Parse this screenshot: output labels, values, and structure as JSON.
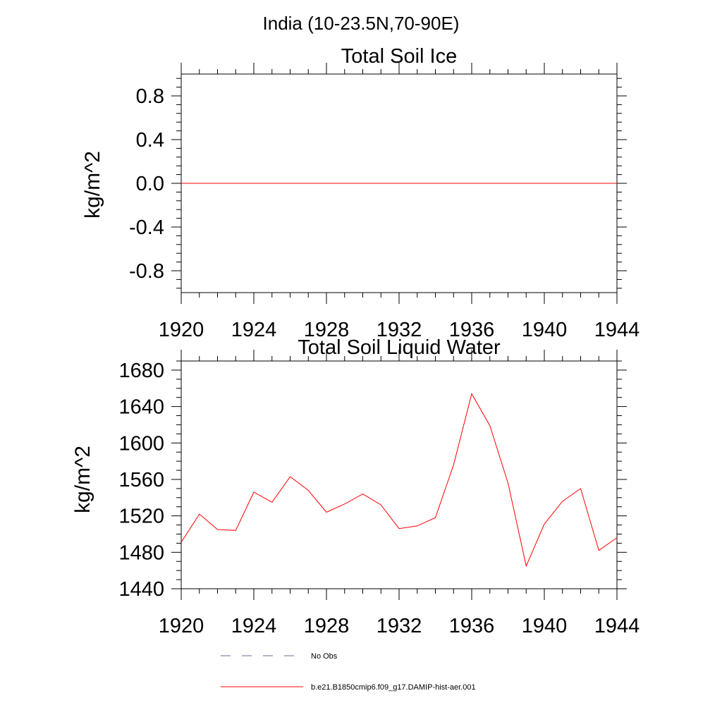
{
  "page_title": "India (10-23.5N,70-90E)",
  "legend": [
    {
      "label": "No Obs",
      "color": "#6a6a9a",
      "style": "dashed"
    },
    {
      "label": "b.e21.B1850cmip6.f09_g17.DAMIP-hist-aer.001",
      "color": "#ff0000",
      "style": "solid"
    }
  ],
  "chart_data": [
    {
      "type": "line",
      "title": "Total Soil Ice",
      "xlabel": "",
      "ylabel": "kg/m^2",
      "xlim": [
        1920,
        1944
      ],
      "ylim": [
        -1.0,
        1.0
      ],
      "x_ticks": [
        "1920",
        "1924",
        "1928",
        "1932",
        "1936",
        "1940",
        "1944"
      ],
      "y_ticks": [
        "0.8",
        "0.4",
        "0.0",
        "-0.4",
        "-0.8"
      ],
      "x_tick_values": [
        1920,
        1924,
        1928,
        1932,
        1936,
        1940,
        1944
      ],
      "y_tick_values": [
        0.8,
        0.4,
        0.0,
        -0.4,
        -0.8
      ],
      "grid": false,
      "series": [
        {
          "color": "#ff0000",
          "x": [
            1920,
            1921,
            1922,
            1923,
            1924,
            1925,
            1926,
            1927,
            1928,
            1929,
            1930,
            1931,
            1932,
            1933,
            1934,
            1935,
            1936,
            1937,
            1938,
            1939,
            1940,
            1941,
            1942,
            1943,
            1944
          ],
          "values": [
            0,
            0,
            0,
            0,
            0,
            0,
            0,
            0,
            0,
            0,
            0,
            0,
            0,
            0,
            0,
            0,
            0,
            0,
            0,
            0,
            0,
            0,
            0,
            0,
            0
          ]
        }
      ]
    },
    {
      "type": "line",
      "title": "Total Soil Liquid Water",
      "xlabel": "",
      "ylabel": "kg/m^2",
      "xlim": [
        1920,
        1944
      ],
      "ylim": [
        1440,
        1690
      ],
      "x_ticks": [
        "1920",
        "1924",
        "1928",
        "1932",
        "1936",
        "1940",
        "1944"
      ],
      "y_ticks": [
        "1680",
        "1640",
        "1600",
        "1560",
        "1520",
        "1480",
        "1440"
      ],
      "x_tick_values": [
        1920,
        1924,
        1928,
        1932,
        1936,
        1940,
        1944
      ],
      "y_tick_values": [
        1680,
        1640,
        1600,
        1560,
        1520,
        1480,
        1440
      ],
      "grid": false,
      "series": [
        {
          "color": "#ff0000",
          "x": [
            1920,
            1921,
            1922,
            1923,
            1924,
            1925,
            1926,
            1927,
            1928,
            1929,
            1930,
            1931,
            1932,
            1933,
            1934,
            1935,
            1936,
            1937,
            1938,
            1939,
            1940,
            1941,
            1942,
            1943,
            1944
          ],
          "values": [
            1491,
            1522,
            1505,
            1504,
            1546,
            1535,
            1563,
            1548,
            1524,
            1533,
            1544,
            1532,
            1506,
            1509,
            1518,
            1576,
            1654,
            1619,
            1556,
            1465,
            1511,
            1536,
            1550,
            1482,
            1496
          ]
        }
      ]
    }
  ]
}
